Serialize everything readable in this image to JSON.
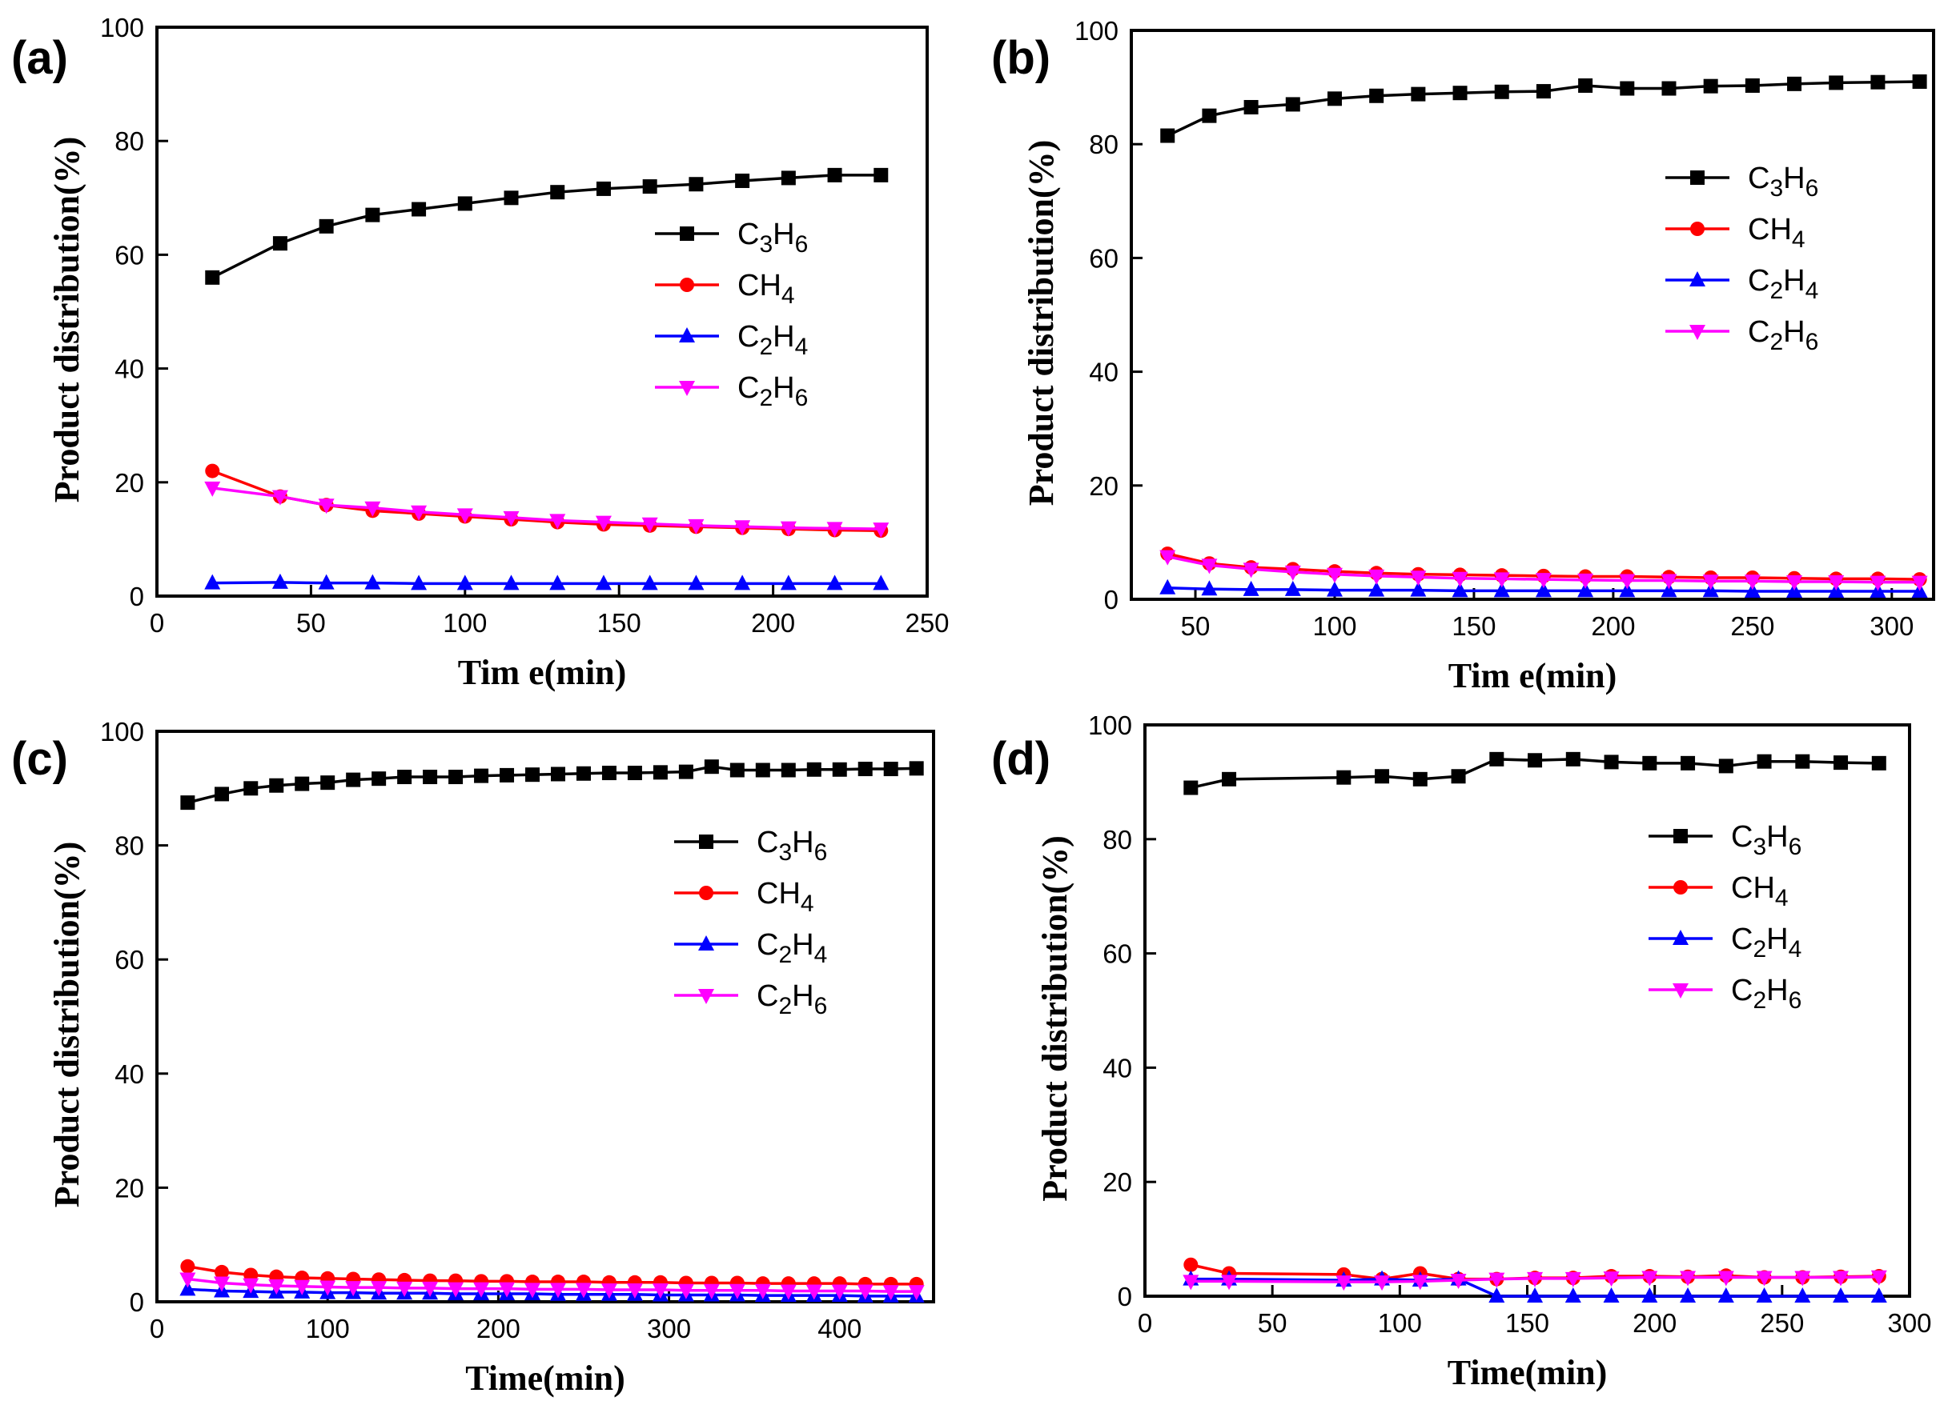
{
  "colors": {
    "C3H6": "#000000",
    "CH4": "#ff0000",
    "C2H4": "#0000ff",
    "C2H6": "#ff00ff",
    "axis": "#000000",
    "background": "#ffffff"
  },
  "chart_data": [
    {
      "panel_label": "(a)",
      "type": "line",
      "xlabel": "Tim e(min)",
      "ylabel": "Product distribution(%)",
      "xlim": [
        0,
        250
      ],
      "ylim": [
        0,
        100
      ],
      "xticks": [
        0,
        50,
        100,
        150,
        200,
        250
      ],
      "yticks": [
        0,
        20,
        40,
        60,
        80,
        100
      ],
      "grid": false,
      "legend_position": "center-right",
      "series": [
        {
          "key": "C3H6",
          "name": "C3H6",
          "label_base": "C",
          "sub1": "3",
          "label_mid": "H",
          "sub2": "6",
          "marker": "square",
          "x": [
            18,
            40,
            55,
            70,
            85,
            100,
            115,
            130,
            145,
            160,
            175,
            190,
            205,
            220,
            235
          ],
          "y": [
            56,
            62,
            65,
            67,
            68,
            69,
            70,
            71,
            71.6,
            72,
            72.4,
            73,
            73.5,
            74,
            74
          ]
        },
        {
          "key": "CH4",
          "name": "CH4",
          "label_base": "CH",
          "sub1": "4",
          "label_mid": "",
          "sub2": "",
          "marker": "circle",
          "x": [
            18,
            40,
            55,
            70,
            85,
            100,
            115,
            130,
            145,
            160,
            175,
            190,
            205,
            220,
            235
          ],
          "y": [
            22,
            17.5,
            16,
            15,
            14.5,
            14,
            13.5,
            13,
            12.6,
            12.4,
            12.2,
            12,
            11.8,
            11.6,
            11.5
          ]
        },
        {
          "key": "C2H4",
          "name": "C2H4",
          "label_base": "C",
          "sub1": "2",
          "label_mid": "H",
          "sub2": "4",
          "marker": "triangle-up",
          "x": [
            18,
            40,
            55,
            70,
            85,
            100,
            115,
            130,
            145,
            160,
            175,
            190,
            205,
            220,
            235
          ],
          "y": [
            2.3,
            2.4,
            2.3,
            2.3,
            2.2,
            2.2,
            2.2,
            2.2,
            2.2,
            2.2,
            2.2,
            2.2,
            2.2,
            2.2,
            2.2
          ]
        },
        {
          "key": "C2H6",
          "name": "C2H6",
          "label_base": "C",
          "sub1": "2",
          "label_mid": "H",
          "sub2": "6",
          "marker": "triangle-down",
          "x": [
            18,
            40,
            55,
            70,
            85,
            100,
            115,
            130,
            145,
            160,
            175,
            190,
            205,
            220,
            235
          ],
          "y": [
            19,
            17.5,
            16,
            15.5,
            14.8,
            14.3,
            13.8,
            13.3,
            13,
            12.7,
            12.4,
            12.2,
            12,
            11.9,
            11.8
          ]
        }
      ]
    },
    {
      "panel_label": "(b)",
      "type": "line",
      "xlabel": "Tim e(min)",
      "ylabel": "Product distribution(%)",
      "xlim": [
        27,
        315
      ],
      "ylim": [
        0,
        100
      ],
      "xticks": [
        50,
        100,
        150,
        200,
        250,
        300
      ],
      "yticks": [
        0,
        20,
        40,
        60,
        80,
        100
      ],
      "grid": false,
      "legend_position": "top-right",
      "series": [
        {
          "key": "C3H6",
          "name": "C3H6",
          "label_base": "C",
          "sub1": "3",
          "label_mid": "H",
          "sub2": "6",
          "marker": "square",
          "x": [
            40,
            55,
            70,
            85,
            100,
            115,
            130,
            145,
            160,
            175,
            190,
            205,
            220,
            235,
            250,
            265,
            280,
            295,
            310
          ],
          "y": [
            81.5,
            85,
            86.5,
            87,
            88,
            88.5,
            88.8,
            89,
            89.2,
            89.3,
            90.3,
            89.8,
            89.8,
            90.2,
            90.3,
            90.6,
            90.8,
            90.9,
            91
          ]
        },
        {
          "key": "CH4",
          "name": "CH4",
          "label_base": "CH",
          "sub1": "4",
          "label_mid": "",
          "sub2": "",
          "marker": "circle",
          "x": [
            40,
            55,
            70,
            85,
            100,
            115,
            130,
            145,
            160,
            175,
            190,
            205,
            220,
            235,
            250,
            265,
            280,
            295,
            310
          ],
          "y": [
            8,
            6.3,
            5.6,
            5.3,
            4.9,
            4.6,
            4.4,
            4.3,
            4.2,
            4.1,
            4,
            4,
            3.9,
            3.8,
            3.8,
            3.7,
            3.6,
            3.6,
            3.5
          ]
        },
        {
          "key": "C2H4",
          "name": "C2H4",
          "label_base": "C",
          "sub1": "2",
          "label_mid": "H",
          "sub2": "4",
          "marker": "triangle-up",
          "x": [
            40,
            55,
            70,
            85,
            100,
            115,
            130,
            145,
            160,
            175,
            190,
            205,
            220,
            235,
            250,
            265,
            280,
            295,
            310
          ],
          "y": [
            2,
            1.8,
            1.7,
            1.7,
            1.6,
            1.6,
            1.6,
            1.5,
            1.5,
            1.5,
            1.5,
            1.5,
            1.5,
            1.5,
            1.4,
            1.4,
            1.4,
            1.4,
            1.4
          ]
        },
        {
          "key": "C2H6",
          "name": "C2H6",
          "label_base": "C",
          "sub1": "2",
          "label_mid": "H",
          "sub2": "6",
          "marker": "triangle-down",
          "x": [
            40,
            55,
            70,
            85,
            100,
            115,
            130,
            145,
            160,
            175,
            190,
            205,
            220,
            235,
            250,
            265,
            280,
            295,
            310
          ],
          "y": [
            7.5,
            6,
            5.3,
            4.8,
            4.4,
            4.1,
            3.9,
            3.7,
            3.6,
            3.5,
            3.4,
            3.3,
            3.3,
            3.2,
            3.2,
            3.1,
            3.1,
            3,
            3
          ]
        }
      ]
    },
    {
      "panel_label": "(c)",
      "type": "line",
      "xlabel": "Time(min)",
      "ylabel": "Product distribution(%)",
      "xlim": [
        0,
        455
      ],
      "ylim": [
        0,
        100
      ],
      "xticks": [
        0,
        100,
        200,
        300,
        400
      ],
      "yticks": [
        0,
        20,
        40,
        60,
        80,
        100
      ],
      "grid": false,
      "legend_position": "center-right",
      "series": [
        {
          "key": "C3H6",
          "name": "C3H6",
          "label_base": "C",
          "sub1": "3",
          "label_mid": "H",
          "sub2": "6",
          "marker": "square",
          "x": [
            18,
            38,
            55,
            70,
            85,
            100,
            115,
            130,
            145,
            160,
            175,
            190,
            205,
            220,
            235,
            250,
            265,
            280,
            295,
            310,
            325,
            340,
            355,
            370,
            385,
            400,
            415,
            430,
            445
          ],
          "y": [
            87.5,
            89,
            90,
            90.5,
            90.8,
            91,
            91.5,
            91.7,
            92,
            92,
            92,
            92.2,
            92.3,
            92.4,
            92.5,
            92.6,
            92.7,
            92.7,
            92.8,
            92.9,
            93.8,
            93.2,
            93.2,
            93.2,
            93.3,
            93.3,
            93.4,
            93.4,
            93.5
          ]
        },
        {
          "key": "CH4",
          "name": "CH4",
          "label_base": "CH",
          "sub1": "4",
          "label_mid": "",
          "sub2": "",
          "marker": "circle",
          "x": [
            18,
            38,
            55,
            70,
            85,
            100,
            115,
            130,
            145,
            160,
            175,
            190,
            205,
            220,
            235,
            250,
            265,
            280,
            295,
            310,
            325,
            340,
            355,
            370,
            385,
            400,
            415,
            430,
            445
          ],
          "y": [
            6.2,
            5.2,
            4.7,
            4.4,
            4.2,
            4.1,
            4,
            3.9,
            3.8,
            3.7,
            3.7,
            3.6,
            3.6,
            3.5,
            3.5,
            3.5,
            3.4,
            3.4,
            3.4,
            3.3,
            3.3,
            3.3,
            3.2,
            3.2,
            3.2,
            3.2,
            3.1,
            3.1,
            3.1
          ]
        },
        {
          "key": "C2H4",
          "name": "C2H4",
          "label_base": "C",
          "sub1": "2",
          "label_mid": "H",
          "sub2": "4",
          "marker": "triangle-up",
          "x": [
            18,
            38,
            55,
            70,
            85,
            100,
            115,
            130,
            145,
            160,
            175,
            190,
            205,
            220,
            235,
            250,
            265,
            280,
            295,
            310,
            325,
            340,
            355,
            370,
            385,
            400,
            415,
            430,
            445
          ],
          "y": [
            2.2,
            1.9,
            1.8,
            1.7,
            1.7,
            1.6,
            1.6,
            1.5,
            1.5,
            1.5,
            1.4,
            1.4,
            1.4,
            1.4,
            1.3,
            1.3,
            1.3,
            1.3,
            1.2,
            1.2,
            1.2,
            1.2,
            1.1,
            1.1,
            1.1,
            1.1,
            1,
            1,
            1
          ]
        },
        {
          "key": "C2H6",
          "name": "C2H6",
          "label_base": "C",
          "sub1": "2",
          "label_mid": "H",
          "sub2": "6",
          "marker": "triangle-down",
          "x": [
            18,
            38,
            55,
            70,
            85,
            100,
            115,
            130,
            145,
            160,
            175,
            190,
            205,
            220,
            235,
            250,
            265,
            280,
            295,
            310,
            325,
            340,
            355,
            370,
            385,
            400,
            415,
            430,
            445
          ],
          "y": [
            4,
            3.3,
            3,
            2.8,
            2.7,
            2.6,
            2.5,
            2.5,
            2.4,
            2.4,
            2.3,
            2.3,
            2.3,
            2.2,
            2.2,
            2.2,
            2.1,
            2.1,
            2.1,
            2,
            2,
            2,
            2,
            1.9,
            1.9,
            1.9,
            1.9,
            1.8,
            1.8
          ]
        }
      ]
    },
    {
      "panel_label": "(d)",
      "type": "line",
      "xlabel": "Time(min)",
      "ylabel": "Product distribution(%)",
      "xlim": [
        0,
        300
      ],
      "ylim": [
        0,
        100
      ],
      "xticks": [
        0,
        50,
        100,
        150,
        200,
        250,
        300
      ],
      "yticks": [
        0,
        20,
        40,
        60,
        80,
        100
      ],
      "grid": false,
      "legend_position": "top-right",
      "series": [
        {
          "key": "C3H6",
          "name": "C3H6",
          "label_base": "C",
          "sub1": "3",
          "label_mid": "H",
          "sub2": "6",
          "marker": "square",
          "x": [
            18,
            33,
            78,
            93,
            108,
            123,
            138,
            153,
            168,
            183,
            198,
            213,
            228,
            243,
            258,
            273,
            288
          ],
          "y": [
            89,
            90.5,
            90.8,
            91,
            90.5,
            91,
            94,
            93.8,
            94,
            93.5,
            93.3,
            93.3,
            92.8,
            93.6,
            93.6,
            93.4,
            93.3
          ]
        },
        {
          "key": "CH4",
          "name": "CH4",
          "label_base": "CH",
          "sub1": "4",
          "label_mid": "",
          "sub2": "",
          "marker": "circle",
          "x": [
            18,
            33,
            78,
            93,
            108,
            123,
            138,
            153,
            168,
            183,
            198,
            213,
            228,
            243,
            258,
            273,
            288
          ],
          "y": [
            5.5,
            4,
            3.8,
            3,
            4,
            3,
            3,
            3.2,
            3.2,
            3.5,
            3.5,
            3.4,
            3.6,
            3.3,
            3.3,
            3.4,
            3.5
          ]
        },
        {
          "key": "C2H4",
          "name": "C2H4",
          "label_base": "C",
          "sub1": "2",
          "label_mid": "H",
          "sub2": "4",
          "marker": "triangle-up",
          "x": [
            18,
            33,
            78,
            93,
            108,
            123,
            138,
            153,
            168,
            183,
            198,
            213,
            228,
            243,
            258,
            273,
            288
          ],
          "y": [
            3,
            3,
            2.8,
            3,
            2.8,
            3,
            0,
            0,
            0,
            0,
            0,
            0,
            0,
            0,
            0,
            0,
            0
          ]
        },
        {
          "key": "C2H6",
          "name": "C2H6",
          "label_base": "C",
          "sub1": "2",
          "label_mid": "H",
          "sub2": "6",
          "marker": "triangle-down",
          "x": [
            18,
            33,
            78,
            93,
            108,
            123,
            138,
            153,
            168,
            183,
            198,
            213,
            228,
            243,
            258,
            273,
            288
          ],
          "y": [
            2.6,
            2.6,
            2.5,
            2.5,
            2.6,
            2.8,
            3,
            3.1,
            3.1,
            3.2,
            3.3,
            3.3,
            3.3,
            3.3,
            3.3,
            3.3,
            3.4
          ]
        }
      ]
    }
  ]
}
